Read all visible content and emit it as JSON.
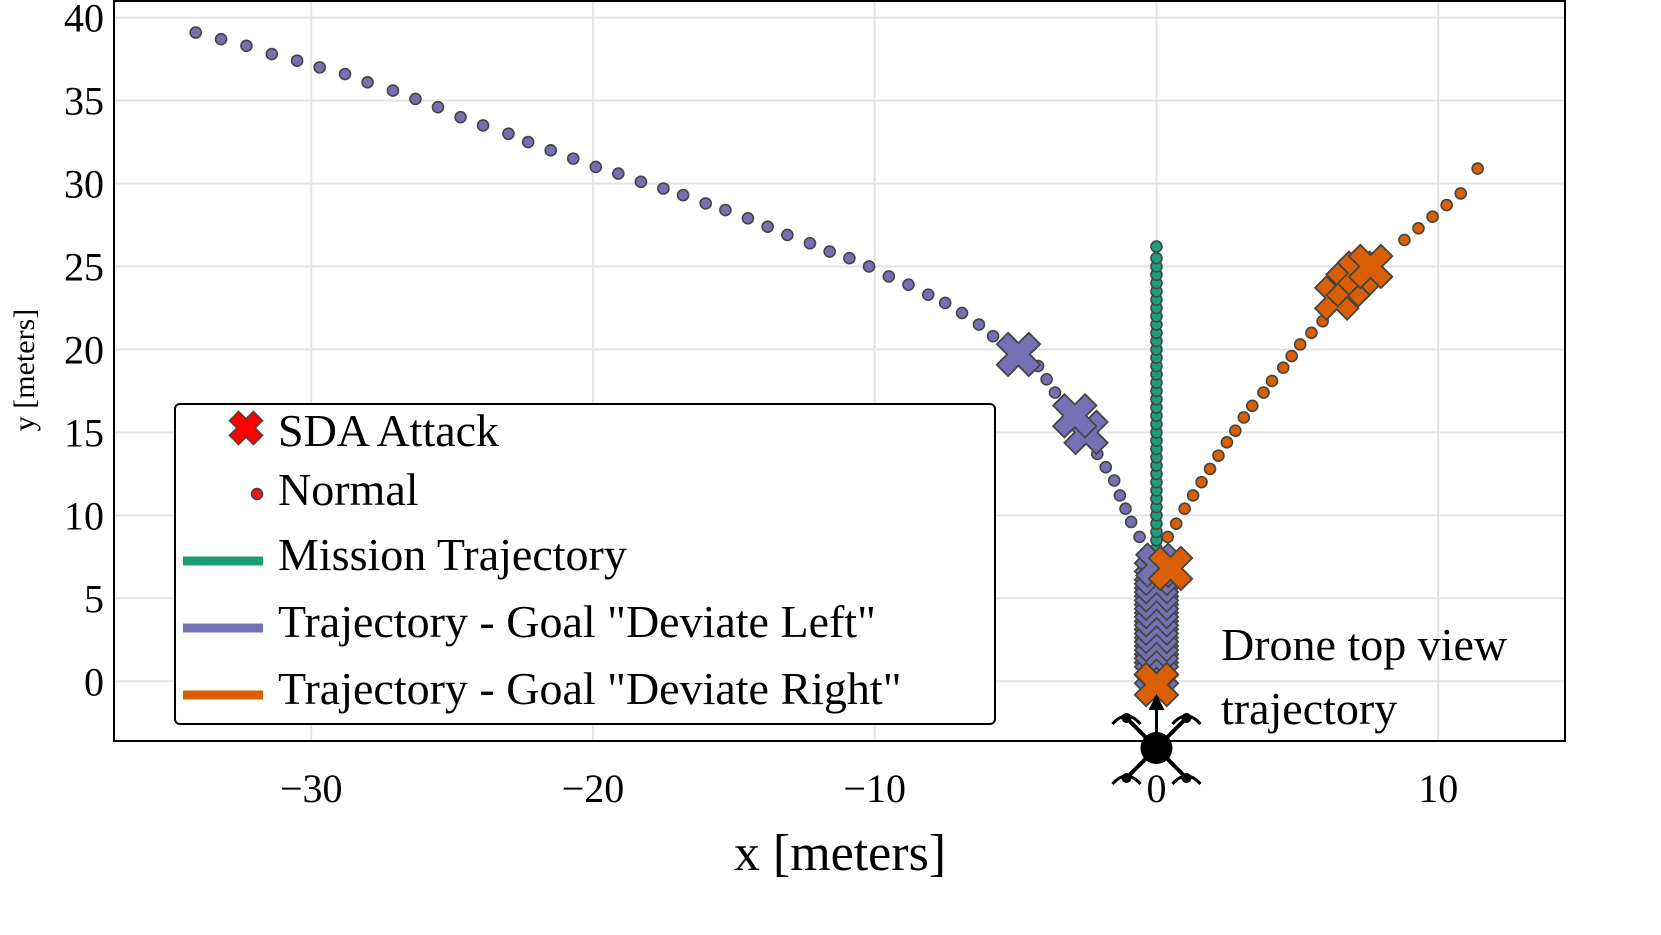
{
  "chart_data": {
    "type": "scatter",
    "xlabel": "x [meters]",
    "ylabel": "y [meters]",
    "xlim": [
      -37,
      14.5
    ],
    "ylim": [
      -3.6,
      41
    ],
    "x_ticks": [
      -30,
      -20,
      -10,
      0,
      10
    ],
    "x_tick_labels": [
      "−30",
      "−20",
      "−10",
      "0",
      "10"
    ],
    "y_ticks": [
      0,
      5,
      10,
      15,
      20,
      25,
      30,
      35,
      40
    ],
    "y_tick_labels": [
      "0",
      "5",
      "10",
      "15",
      "20",
      "25",
      "30",
      "35",
      "40"
    ],
    "grid": true,
    "legend_position": "lower-left",
    "legend": [
      {
        "label": "SDA Attack",
        "marker": "x",
        "color": "#ff0000"
      },
      {
        "label": "Normal",
        "marker": "dot",
        "color": "#e41a1c"
      },
      {
        "label": "Mission Trajectory",
        "marker": "line",
        "color": "#1b9e77"
      },
      {
        "label": "Trajectory - Goal \"Deviate Left\"",
        "marker": "line",
        "color": "#7570b3"
      },
      {
        "label": "Trajectory - Goal \"Deviate Right\"",
        "marker": "line",
        "color": "#d95f02"
      }
    ],
    "annotation": {
      "line1": "Drone top view",
      "line2": "trajectory"
    },
    "series": [
      {
        "color": "#1b9e77",
        "normal": [
          [
            0,
            0
          ],
          [
            0,
            0.5
          ],
          [
            0,
            1
          ],
          [
            0,
            1.5
          ],
          [
            0,
            2
          ],
          [
            0,
            2.5
          ],
          [
            0,
            3
          ],
          [
            0,
            3.5
          ],
          [
            0,
            4
          ],
          [
            0,
            4.5
          ],
          [
            0,
            5
          ],
          [
            0,
            5.5
          ],
          [
            0,
            6
          ],
          [
            0,
            6.5
          ],
          [
            0,
            7
          ],
          [
            0,
            7.5
          ],
          [
            0,
            8
          ],
          [
            0,
            8.5
          ],
          [
            0,
            9
          ],
          [
            0,
            9.5
          ],
          [
            0,
            10
          ],
          [
            0,
            10.5
          ],
          [
            0,
            11
          ],
          [
            0,
            11.5
          ],
          [
            0,
            12
          ],
          [
            0,
            12.5
          ],
          [
            0,
            13
          ],
          [
            0,
            13.5
          ],
          [
            0,
            14
          ],
          [
            0,
            14.5
          ],
          [
            0,
            15
          ],
          [
            0,
            15.5
          ],
          [
            0,
            16
          ],
          [
            0,
            16.5
          ],
          [
            0,
            17
          ],
          [
            0,
            17.5
          ],
          [
            0,
            18
          ],
          [
            0,
            18.5
          ],
          [
            0,
            19
          ],
          [
            0,
            19.5
          ],
          [
            0,
            20
          ],
          [
            0,
            20.5
          ],
          [
            0,
            21
          ],
          [
            0,
            21.5
          ],
          [
            0,
            22
          ],
          [
            0,
            22.5
          ],
          [
            0,
            23
          ],
          [
            0,
            23.5
          ],
          [
            0,
            24
          ],
          [
            0,
            24.5
          ],
          [
            0,
            25
          ],
          [
            0,
            25.5
          ],
          [
            0,
            26.2
          ]
        ],
        "attack": []
      },
      {
        "color": "#7570b3",
        "normal": [
          [
            -0.6,
            8.7
          ],
          [
            -0.9,
            9.6
          ],
          [
            -1.1,
            10.4
          ],
          [
            -1.3,
            11.2
          ],
          [
            -1.5,
            12.1
          ],
          [
            -1.8,
            12.9
          ],
          [
            -2.1,
            13.7
          ],
          [
            -3.6,
            17.4
          ],
          [
            -3.9,
            18.2
          ],
          [
            -4.2,
            19.0
          ],
          [
            -5.8,
            20.8
          ],
          [
            -6.3,
            21.5
          ],
          [
            -6.9,
            22.2
          ],
          [
            -7.5,
            22.8
          ],
          [
            -8.1,
            23.3
          ],
          [
            -8.8,
            23.9
          ],
          [
            -9.5,
            24.4
          ],
          [
            -10.2,
            25.0
          ],
          [
            -10.9,
            25.5
          ],
          [
            -11.6,
            25.9
          ],
          [
            -12.3,
            26.4
          ],
          [
            -13.1,
            26.9
          ],
          [
            -13.8,
            27.4
          ],
          [
            -14.5,
            27.9
          ],
          [
            -15.3,
            28.4
          ],
          [
            -16.0,
            28.8
          ],
          [
            -16.8,
            29.3
          ],
          [
            -17.5,
            29.7
          ],
          [
            -18.3,
            30.1
          ],
          [
            -19.1,
            30.6
          ],
          [
            -19.9,
            31.0
          ],
          [
            -20.7,
            31.5
          ],
          [
            -21.5,
            32.0
          ],
          [
            -22.3,
            32.5
          ],
          [
            -23.0,
            33.0
          ],
          [
            -23.9,
            33.5
          ],
          [
            -24.7,
            34.0
          ],
          [
            -25.5,
            34.6
          ],
          [
            -26.3,
            35.1
          ],
          [
            -27.1,
            35.6
          ],
          [
            -28.0,
            36.1
          ],
          [
            -28.8,
            36.6
          ],
          [
            -29.7,
            37.0
          ],
          [
            -30.5,
            37.4
          ],
          [
            -31.4,
            37.8
          ],
          [
            -32.3,
            38.3
          ],
          [
            -33.2,
            38.7
          ],
          [
            -34.1,
            39.1
          ]
        ],
        "attack": [
          [
            0,
            0.5
          ],
          [
            0,
            1
          ],
          [
            0,
            1.5
          ],
          [
            0,
            2
          ],
          [
            0,
            2.5
          ],
          [
            0,
            3
          ],
          [
            0,
            3.5
          ],
          [
            0,
            4
          ],
          [
            0,
            4.5
          ],
          [
            0,
            5
          ],
          [
            0,
            5.5
          ],
          [
            0,
            6
          ],
          [
            0,
            6.5
          ],
          [
            0.05,
            7.0
          ],
          [
            -2.5,
            15.0
          ],
          [
            -2.9,
            16.0
          ],
          [
            -4.9,
            19.7
          ]
        ]
      },
      {
        "color": "#d95f02",
        "normal": [
          [
            0.4,
            8.7
          ],
          [
            0.7,
            9.5
          ],
          [
            1.0,
            10.4
          ],
          [
            1.3,
            11.2
          ],
          [
            1.6,
            12.0
          ],
          [
            1.9,
            12.8
          ],
          [
            2.2,
            13.6
          ],
          [
            2.5,
            14.4
          ],
          [
            2.8,
            15.1
          ],
          [
            3.1,
            15.9
          ],
          [
            3.4,
            16.6
          ],
          [
            3.8,
            17.4
          ],
          [
            4.1,
            18.1
          ],
          [
            4.5,
            18.9
          ],
          [
            4.8,
            19.6
          ],
          [
            5.1,
            20.3
          ],
          [
            5.5,
            21.0
          ],
          [
            5.9,
            21.7
          ],
          [
            8.8,
            26.6
          ],
          [
            9.3,
            27.3
          ],
          [
            9.8,
            28.0
          ],
          [
            10.3,
            28.7
          ],
          [
            10.8,
            29.4
          ],
          [
            11.4,
            30.9
          ]
        ],
        "attack": [
          [
            0,
            -0.2
          ],
          [
            0.5,
            6.8
          ],
          [
            6.4,
            23.1
          ],
          [
            6.8,
            23.9
          ],
          [
            7.2,
            24.6
          ],
          [
            7.6,
            25.0
          ]
        ]
      }
    ]
  }
}
